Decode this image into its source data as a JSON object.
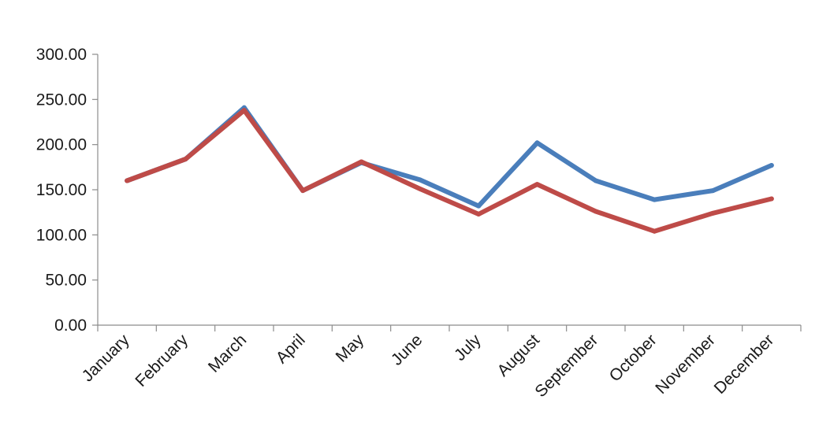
{
  "chart_data": {
    "type": "line",
    "categories": [
      "January",
      "February",
      "March",
      "April",
      "May",
      "June",
      "July",
      "August",
      "September",
      "October",
      "November",
      "December"
    ],
    "series": [
      {
        "values": [
          160,
          184,
          241,
          149,
          180,
          161,
          132,
          202,
          160,
          139,
          149,
          177
        ],
        "color": "#4a7ebb"
      },
      {
        "values": [
          160,
          184,
          238,
          149,
          181,
          151,
          123,
          156,
          126,
          104,
          124,
          140
        ],
        "color": "#be4b48"
      }
    ],
    "ylim": [
      0,
      300
    ],
    "yticks": [
      "0.00",
      "50.00",
      "100.00",
      "150.00",
      "200.00",
      "250.00",
      "300.00"
    ],
    "grid": false,
    "legend": "none"
  }
}
